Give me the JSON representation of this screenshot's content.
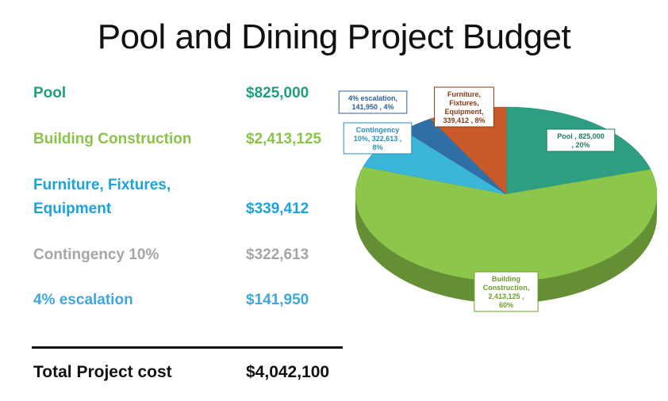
{
  "title": "Pool and Dining Project Budget",
  "table": {
    "rows": [
      {
        "label": "Pool",
        "value": "$825,000",
        "color": "#1f9e7e"
      },
      {
        "label": "Building Construction",
        "value": "$2,413,125",
        "color": "#8bc34a"
      },
      {
        "label": "Furniture, Fixtures, Equipment",
        "value": "$339,412",
        "color": "#1ba3dd"
      },
      {
        "label": "Contingency 10%",
        "value": "$322,613",
        "color": "#a6a6a6"
      },
      {
        "label": "4% escalation",
        "value": "$141,950",
        "color": "#3fa7e0"
      }
    ],
    "total": {
      "label": "Total Project cost",
      "value": "$4,042,100"
    }
  },
  "chart_data": {
    "type": "pie",
    "title": "Pool and Dining Project Budget",
    "slices": [
      {
        "name": "Pool",
        "value": 825000,
        "percent": 20,
        "color": "#2e9e82",
        "label_lines": [
          "Pool , 825,000",
          ", 20%"
        ],
        "label_color": "#1f7a63"
      },
      {
        "name": "Building Construction",
        "value": 2413125,
        "percent": 60,
        "color": "#8cc64a",
        "label_lines": [
          "Building",
          "Construction,",
          "2,413,125 ,",
          "60%"
        ],
        "label_color": "#6d9e2f"
      },
      {
        "name": "Contingency 10%",
        "value": 322613,
        "percent": 8,
        "color": "#3bb6d8",
        "label_lines": [
          "Contingency",
          "10%, 322,613 ,",
          "8%"
        ],
        "label_color": "#2a8fb8"
      },
      {
        "name": "4% escalation",
        "value": 141950,
        "percent": 4,
        "color": "#2f6fa6",
        "label_lines": [
          "4% escalation,",
          "141,950 , 4%"
        ],
        "label_color": "#2d5f96"
      },
      {
        "name": "Furniture, Fixtures, Equipment",
        "value": 339412,
        "percent": 8,
        "color": "#c85a2a",
        "label_lines": [
          "Furniture,",
          "Fixtures,",
          "Equipment,",
          "339,412 , 8%"
        ],
        "label_color": "#8a3a18"
      }
    ]
  }
}
